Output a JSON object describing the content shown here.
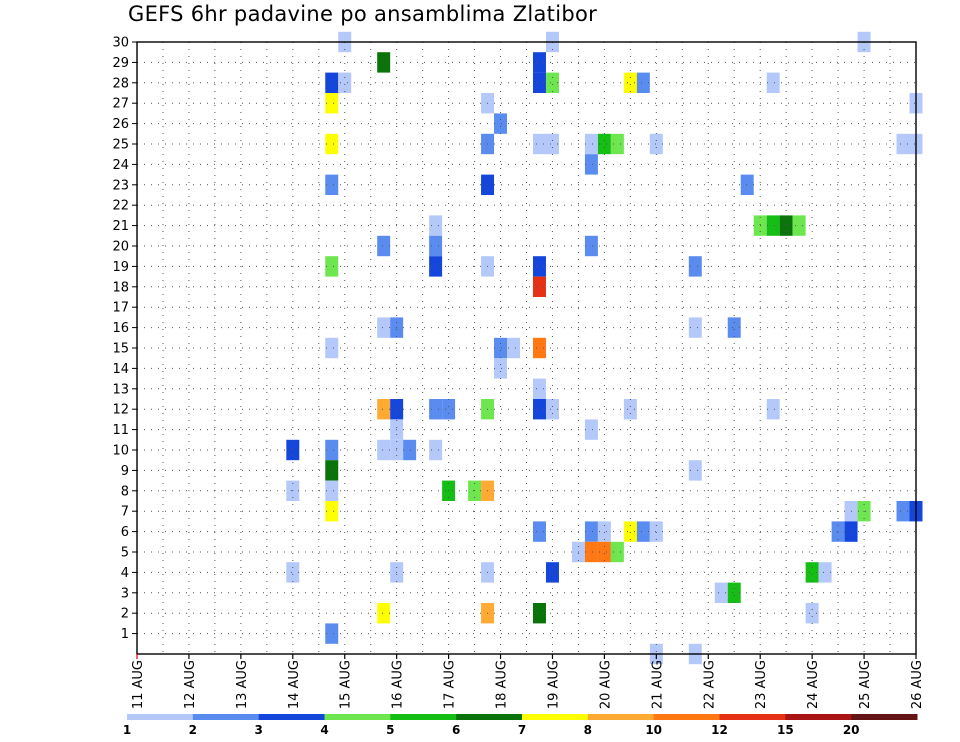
{
  "chart_data": {
    "type": "heatmap",
    "title": "GEFS 6hr padavine po ansamblima Zlatibor",
    "x_tick_labels": [
      "11 AUG",
      "12 AUG",
      "13 AUG",
      "14 AUG",
      "15 AUG",
      "16 AUG",
      "17 AUG",
      "18 AUG",
      "19 AUG",
      "20 AUG",
      "21 AUG",
      "22 AUG",
      "23 AUG",
      "24 AUG",
      "25 AUG",
      "26 AUG"
    ],
    "y_tick_labels": [
      "1",
      "2",
      "3",
      "4",
      "5",
      "6",
      "7",
      "8",
      "9",
      "10",
      "11",
      "12",
      "13",
      "14",
      "15",
      "16",
      "17",
      "18",
      "19",
      "20",
      "21",
      "22",
      "23",
      "24",
      "25",
      "26",
      "27",
      "28",
      "29",
      "30"
    ],
    "x_range_days": [
      11,
      26
    ],
    "y_range": [
      0,
      30
    ],
    "time_step_hours": 6,
    "grid": "dotted",
    "colorbar": {
      "labels": [
        "1",
        "2",
        "3",
        "4",
        "5",
        "6",
        "7",
        "8",
        "10",
        "12",
        "15",
        "20"
      ],
      "colors": [
        "#b4c8fa",
        "#5a8cf0",
        "#1446dc",
        "#6ee650",
        "#14be14",
        "#0a730a",
        "#ffff00",
        "#ffaa32",
        "#ff7814",
        "#e63214",
        "#aa1414",
        "#641414"
      ]
    },
    "cells": [
      {
        "x": "15 AUG 00Z",
        "y": 30,
        "l": 1
      },
      {
        "x": "19 AUG 00Z",
        "y": 30,
        "l": 1
      },
      {
        "x": "25 AUG 00Z",
        "y": 30,
        "l": 1
      },
      {
        "x": "15 AUG 18Z",
        "y": 29,
        "l": 6
      },
      {
        "x": "18 AUG 18Z",
        "y": 29,
        "l": 3
      },
      {
        "x": "14 AUG 18Z",
        "y": 28,
        "l": 3
      },
      {
        "x": "15 AUG 00Z",
        "y": 28,
        "l": 1
      },
      {
        "x": "18 AUG 18Z",
        "y": 28,
        "l": 3
      },
      {
        "x": "19 AUG 00Z",
        "y": 28,
        "l": 4
      },
      {
        "x": "20 AUG 12Z",
        "y": 28,
        "l": 7
      },
      {
        "x": "20 AUG 18Z",
        "y": 28,
        "l": 2
      },
      {
        "x": "23 AUG 06Z",
        "y": 28,
        "l": 1
      },
      {
        "x": "14 AUG 18Z",
        "y": 27,
        "l": 7
      },
      {
        "x": "17 AUG 18Z",
        "y": 27,
        "l": 1
      },
      {
        "x": "26 AUG 00Z",
        "y": 27,
        "l": 1
      },
      {
        "x": "18 AUG 00Z",
        "y": 26,
        "l": 2
      },
      {
        "x": "14 AUG 18Z",
        "y": 25,
        "l": 7
      },
      {
        "x": "17 AUG 18Z",
        "y": 25,
        "l": 2
      },
      {
        "x": "18 AUG 18Z",
        "y": 25,
        "l": 1
      },
      {
        "x": "19 AUG 00Z",
        "y": 25,
        "l": 1
      },
      {
        "x": "19 AUG 18Z",
        "y": 25,
        "l": 1
      },
      {
        "x": "20 AUG 00Z",
        "y": 25,
        "l": 5
      },
      {
        "x": "20 AUG 06Z",
        "y": 25,
        "l": 4
      },
      {
        "x": "21 AUG 00Z",
        "y": 25,
        "l": 1
      },
      {
        "x": "25 AUG 18Z",
        "y": 25,
        "l": 1
      },
      {
        "x": "26 AUG 00Z",
        "y": 25,
        "l": 1
      },
      {
        "x": "19 AUG 18Z",
        "y": 24,
        "l": 2
      },
      {
        "x": "14 AUG 18Z",
        "y": 23,
        "l": 2
      },
      {
        "x": "17 AUG 18Z",
        "y": 23,
        "l": 3
      },
      {
        "x": "22 AUG 18Z",
        "y": 23,
        "l": 2
      },
      {
        "x": "23 AUG 00Z",
        "y": 21,
        "l": 4
      },
      {
        "x": "23 AUG 06Z",
        "y": 21,
        "l": 5
      },
      {
        "x": "23 AUG 12Z",
        "y": 21,
        "l": 6
      },
      {
        "x": "23 AUG 18Z",
        "y": 21,
        "l": 4
      },
      {
        "x": "16 AUG 18Z",
        "y": 21,
        "l": 1
      },
      {
        "x": "15 AUG 18Z",
        "y": 20,
        "l": 2
      },
      {
        "x": "16 AUG 18Z",
        "y": 20,
        "l": 2
      },
      {
        "x": "19 AUG 18Z",
        "y": 20,
        "l": 2
      },
      {
        "x": "14 AUG 18Z",
        "y": 19,
        "l": 4
      },
      {
        "x": "16 AUG 18Z",
        "y": 19,
        "l": 3
      },
      {
        "x": "17 AUG 18Z",
        "y": 19,
        "l": 1
      },
      {
        "x": "18 AUG 18Z",
        "y": 19,
        "l": 3
      },
      {
        "x": "21 AUG 18Z",
        "y": 19,
        "l": 2
      },
      {
        "x": "18 AUG 18Z",
        "y": 18,
        "l": 12
      },
      {
        "x": "15 AUG 18Z",
        "y": 16,
        "l": 1
      },
      {
        "x": "16 AUG 00Z",
        "y": 16,
        "l": 2
      },
      {
        "x": "21 AUG 18Z",
        "y": 16,
        "l": 1
      },
      {
        "x": "22 AUG 12Z",
        "y": 16,
        "l": 2
      },
      {
        "x": "14 AUG 18Z",
        "y": 15,
        "l": 1
      },
      {
        "x": "18 AUG 00Z",
        "y": 15,
        "l": 2
      },
      {
        "x": "18 AUG 06Z",
        "y": 15,
        "l": 1
      },
      {
        "x": "18 AUG 18Z",
        "y": 15,
        "l": 10
      },
      {
        "x": "18 AUG 00Z",
        "y": 14,
        "l": 1
      },
      {
        "x": "18 AUG 18Z",
        "y": 13,
        "l": 1
      },
      {
        "x": "15 AUG 18Z",
        "y": 12,
        "l": 8
      },
      {
        "x": "16 AUG 00Z",
        "y": 12,
        "l": 3
      },
      {
        "x": "16 AUG 18Z",
        "y": 12,
        "l": 2
      },
      {
        "x": "17 AUG 00Z",
        "y": 12,
        "l": 2
      },
      {
        "x": "17 AUG 18Z",
        "y": 12,
        "l": 4
      },
      {
        "x": "18 AUG 18Z",
        "y": 12,
        "l": 3
      },
      {
        "x": "19 AUG 00Z",
        "y": 12,
        "l": 1
      },
      {
        "x": "20 AUG 12Z",
        "y": 12,
        "l": 1
      },
      {
        "x": "23 AUG 06Z",
        "y": 12,
        "l": 1
      },
      {
        "x": "16 AUG 00Z",
        "y": 11,
        "l": 1
      },
      {
        "x": "19 AUG 18Z",
        "y": 11,
        "l": 1
      },
      {
        "x": "14 AUG 00Z",
        "y": 10,
        "l": 3
      },
      {
        "x": "14 AUG 18Z",
        "y": 10,
        "l": 2
      },
      {
        "x": "15 AUG 18Z",
        "y": 10,
        "l": 1
      },
      {
        "x": "16 AUG 00Z",
        "y": 10,
        "l": 1
      },
      {
        "x": "16 AUG 06Z",
        "y": 10,
        "l": 2
      },
      {
        "x": "16 AUG 18Z",
        "y": 10,
        "l": 1
      },
      {
        "x": "14 AUG 18Z",
        "y": 9,
        "l": 6
      },
      {
        "x": "21 AUG 18Z",
        "y": 9,
        "l": 1
      },
      {
        "x": "14 AUG 00Z",
        "y": 8,
        "l": 1
      },
      {
        "x": "14 AUG 18Z",
        "y": 8,
        "l": 1
      },
      {
        "x": "17 AUG 00Z",
        "y": 8,
        "l": 5
      },
      {
        "x": "17 AUG 12Z",
        "y": 8,
        "l": 4
      },
      {
        "x": "17 AUG 18Z",
        "y": 8,
        "l": 8
      },
      {
        "x": "14 AUG 18Z",
        "y": 7,
        "l": 7
      },
      {
        "x": "24 AUG 18Z",
        "y": 7,
        "l": 1
      },
      {
        "x": "25 AUG 00Z",
        "y": 7,
        "l": 4
      },
      {
        "x": "25 AUG 18Z",
        "y": 7,
        "l": 2
      },
      {
        "x": "26 AUG 00Z",
        "y": 7,
        "l": 3
      },
      {
        "x": "18 AUG 18Z",
        "y": 6,
        "l": 2
      },
      {
        "x": "19 AUG 18Z",
        "y": 6,
        "l": 2
      },
      {
        "x": "20 AUG 00Z",
        "y": 6,
        "l": 1
      },
      {
        "x": "20 AUG 12Z",
        "y": 6,
        "l": 7
      },
      {
        "x": "20 AUG 18Z",
        "y": 6,
        "l": 2
      },
      {
        "x": "21 AUG 00Z",
        "y": 6,
        "l": 1
      },
      {
        "x": "24 AUG 12Z",
        "y": 6,
        "l": 2
      },
      {
        "x": "24 AUG 18Z",
        "y": 6,
        "l": 3
      },
      {
        "x": "19 AUG 12Z",
        "y": 5,
        "l": 1
      },
      {
        "x": "19 AUG 18Z",
        "y": 5,
        "l": 10
      },
      {
        "x": "20 AUG 00Z",
        "y": 5,
        "l": 10
      },
      {
        "x": "20 AUG 06Z",
        "y": 5,
        "l": 4
      },
      {
        "x": "14 AUG 00Z",
        "y": 4,
        "l": 1
      },
      {
        "x": "16 AUG 00Z",
        "y": 4,
        "l": 1
      },
      {
        "x": "17 AUG 18Z",
        "y": 4,
        "l": 1
      },
      {
        "x": "19 AUG 00Z",
        "y": 4,
        "l": 3
      },
      {
        "x": "24 AUG 00Z",
        "y": 4,
        "l": 5
      },
      {
        "x": "24 AUG 06Z",
        "y": 4,
        "l": 1
      },
      {
        "x": "22 AUG 06Z",
        "y": 3,
        "l": 1
      },
      {
        "x": "22 AUG 12Z",
        "y": 3,
        "l": 5
      },
      {
        "x": "15 AUG 18Z",
        "y": 2,
        "l": 7
      },
      {
        "x": "17 AUG 18Z",
        "y": 2,
        "l": 8
      },
      {
        "x": "18 AUG 18Z",
        "y": 2,
        "l": 6
      },
      {
        "x": "24 AUG 00Z",
        "y": 2,
        "l": 1
      },
      {
        "x": "14 AUG 18Z",
        "y": 1,
        "l": 2
      },
      {
        "x": "21 AUG 00Z",
        "y": 0,
        "l": 1
      },
      {
        "x": "21 AUG 18Z",
        "y": 0,
        "l": 1
      }
    ]
  }
}
